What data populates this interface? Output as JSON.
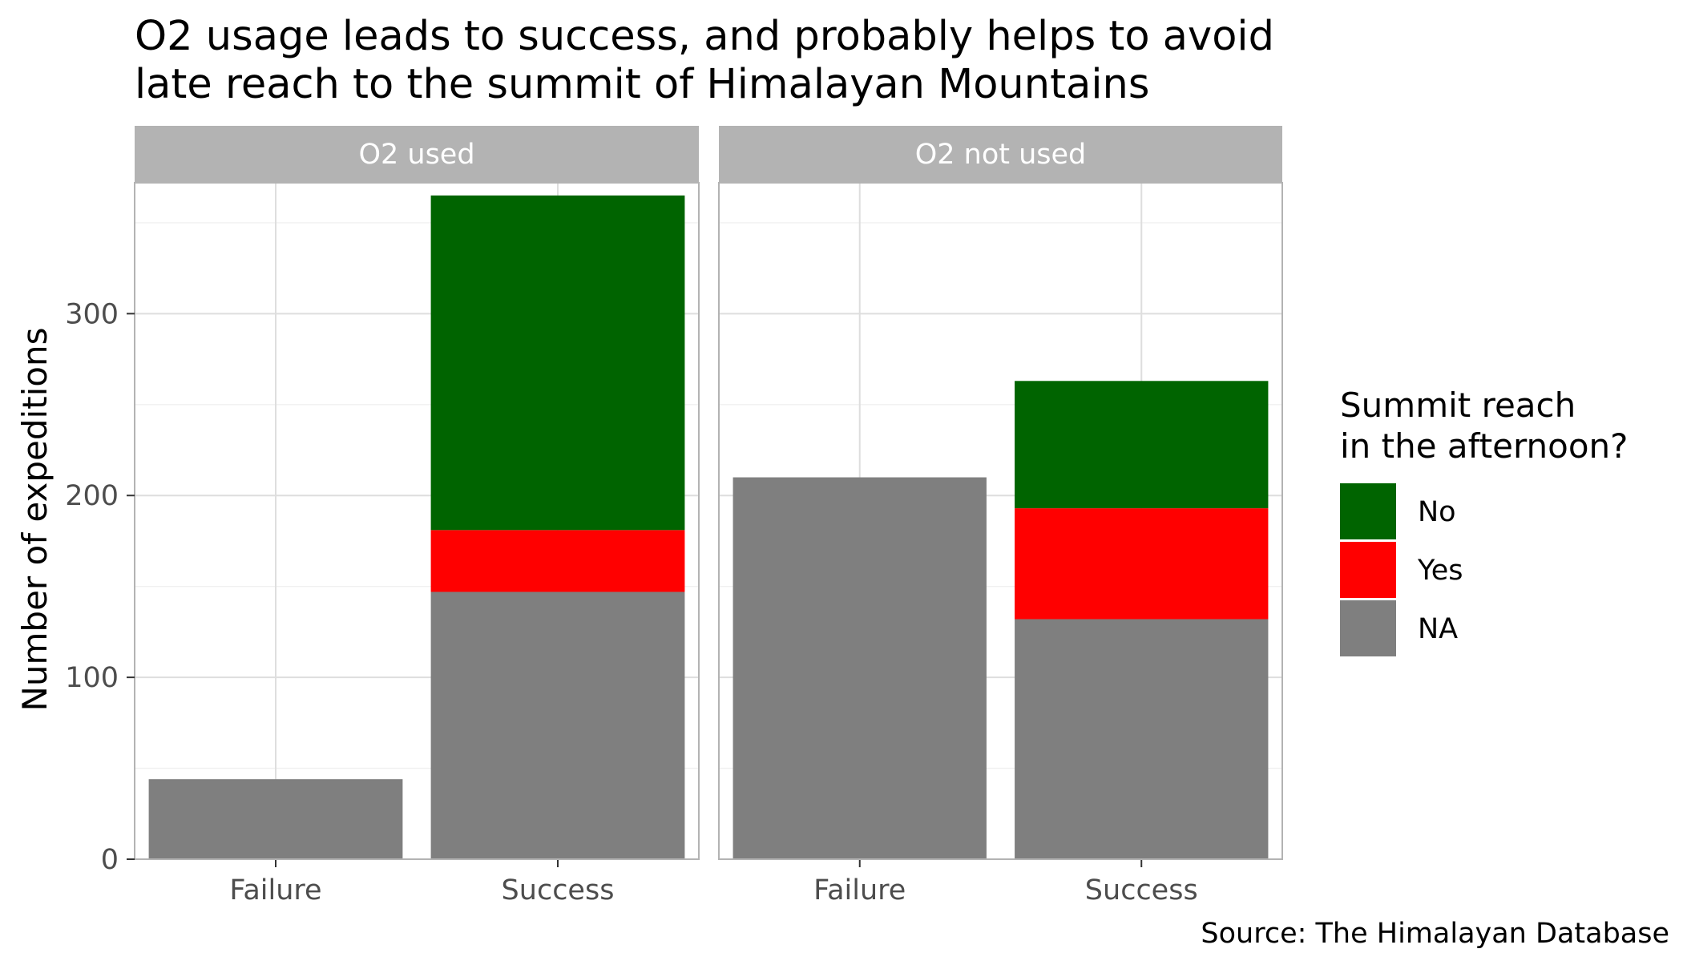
{
  "chart_data": {
    "type": "bar",
    "stacked": true,
    "title": "O2 usage leads to success, and probably helps to avoid late reach to the summit of Himalayan Mountains",
    "title_lines": [
      "O2 usage leads to success, and probably helps to avoid",
      "late reach to the summit of Himalayan Mountains"
    ],
    "ylabel": "Number of expeditions",
    "xlabel": "",
    "ylim": [
      0,
      372
    ],
    "y_ticks": [
      0,
      100,
      200,
      300
    ],
    "y_tick_labels": [
      "0",
      "100",
      "200",
      "300"
    ],
    "y_minor_ticks": [
      50,
      150,
      250,
      350
    ],
    "categories": [
      "Failure",
      "Success"
    ],
    "grid": true,
    "panels": [
      {
        "label": "O2 used",
        "stacks": [
          {
            "category": "Failure",
            "NA": 44,
            "Yes": 0,
            "No": 0
          },
          {
            "category": "Success",
            "NA": 147,
            "Yes": 34,
            "No": 184
          }
        ]
      },
      {
        "label": "O2 not used",
        "stacks": [
          {
            "category": "Failure",
            "NA": 210,
            "Yes": 0,
            "No": 0
          },
          {
            "category": "Success",
            "NA": 132,
            "Yes": 61,
            "No": 70
          }
        ]
      }
    ],
    "legend": {
      "title_lines": [
        "Summit reach",
        "in the afternoon?"
      ],
      "position": "right",
      "items": [
        {
          "key": "No",
          "label": "No",
          "color": "#006400"
        },
        {
          "key": "Yes",
          "label": "Yes",
          "color": "#ff0000"
        },
        {
          "key": "NA",
          "label": "NA",
          "color": "#7f7f7f"
        }
      ]
    },
    "caption": "Source: The Himalayan Database"
  }
}
